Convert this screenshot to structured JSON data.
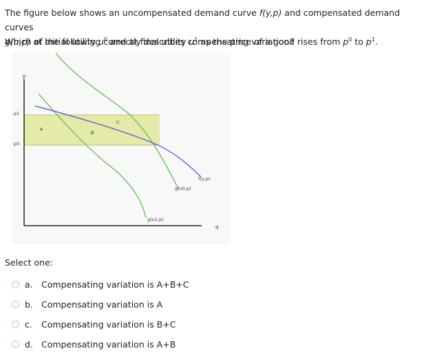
{
  "question": {
    "line1": {
      "before": "The figure below shows an uncompensated demand curve ",
      "f_func": "f(y,p)",
      "middle": " and compensated demand curves"
    },
    "line2": {
      "g_func": "g(u,p)",
      "t1": " at initial utility ",
      "u": "u",
      "zero": "0",
      "t2": " and at final utility ",
      "one": "1",
      "t3": " as the price of a good rises from ",
      "p": "p",
      "t4": " to ",
      "end": "."
    },
    "prompt": "Which of the following correctly describes compensating variation?"
  },
  "figure": {
    "axis_p": "p",
    "axis_q": "q",
    "tick_p1": "p1",
    "tick_p0": "p0",
    "region_a": "A",
    "region_b": "B",
    "region_c": "C",
    "label_f": "f(y,p)",
    "label_g0": "g(u0,p)",
    "label_g1": "g(u1,p)",
    "colors": {
      "band": "#e4eaa8",
      "band_edge": "#b9c277",
      "demand": "#5b49c9",
      "compensated": "#55b748",
      "axis": "#222222"
    }
  },
  "select_one": "Select one:",
  "options": [
    {
      "letter": "a.",
      "text": "Compensating variation is A+B+C"
    },
    {
      "letter": "b.",
      "text": "Compensating variation is A"
    },
    {
      "letter": "c.",
      "text": "Compensating variation is B+C"
    },
    {
      "letter": "d.",
      "text": "Compensating variation is A+B"
    }
  ]
}
